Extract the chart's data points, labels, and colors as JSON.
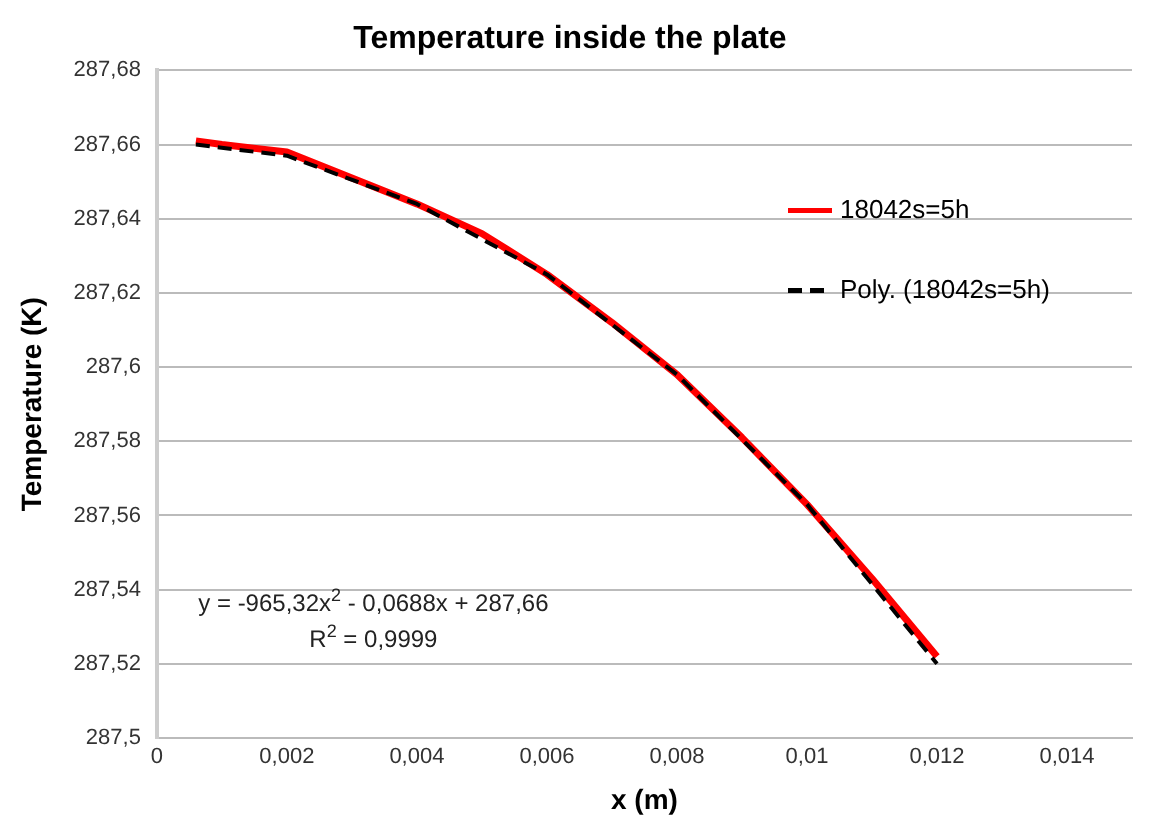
{
  "chart_data": {
    "type": "line",
    "title": "Temperature inside the plate",
    "xlabel": "x (m)",
    "ylabel": "Temperature (K)",
    "x": [
      0.0006,
      0.001,
      0.002,
      0.003,
      0.004,
      0.005,
      0.006,
      0.007,
      0.008,
      0.009,
      0.01,
      0.011,
      0.012
    ],
    "series": [
      {
        "name": "18042s=5h",
        "color": "#ff0000",
        "line_style": "solid",
        "values": [
          287.661,
          287.66,
          287.658,
          287.651,
          287.644,
          287.636,
          287.625,
          287.612,
          287.598,
          287.581,
          287.563,
          287.543,
          287.522
        ]
      },
      {
        "name": "Poly. (18042s=5h)",
        "color": "#000000",
        "line_style": "dashed",
        "x": [
          0.0006,
          0.002,
          0.004,
          0.006,
          0.008,
          0.01,
          0.012
        ],
        "values": [
          287.66,
          287.657,
          287.644,
          287.625,
          287.598,
          287.563,
          287.52
        ]
      }
    ],
    "xlim": [
      0,
      0.015
    ],
    "xticks": [
      {
        "value": 0,
        "label": "0"
      },
      {
        "value": 0.002,
        "label": "0,002"
      },
      {
        "value": 0.004,
        "label": "0,004"
      },
      {
        "value": 0.006,
        "label": "0,006"
      },
      {
        "value": 0.008,
        "label": "0,008"
      },
      {
        "value": 0.01,
        "label": "0,01"
      },
      {
        "value": 0.012,
        "label": "0,012"
      },
      {
        "value": 0.014,
        "label": "0,014"
      }
    ],
    "ylim": [
      287.5,
      287.68
    ],
    "yticks": [
      {
        "value": 287.5,
        "label": "287,5"
      },
      {
        "value": 287.52,
        "label": "287,52"
      },
      {
        "value": 287.54,
        "label": "287,54"
      },
      {
        "value": 287.56,
        "label": "287,56"
      },
      {
        "value": 287.58,
        "label": "287,58"
      },
      {
        "value": 287.6,
        "label": "287,6"
      },
      {
        "value": 287.62,
        "label": "287,62"
      },
      {
        "value": 287.64,
        "label": "287,64"
      },
      {
        "value": 287.66,
        "label": "287,66"
      },
      {
        "value": 287.68,
        "label": "287,68"
      }
    ],
    "grid": "y",
    "legend": "right",
    "marker": "none",
    "annotations": [
      "y = -965,32x$^{2}$ - 0,0688x + 287,66",
      "R$^{2}$ = 0,9999"
    ]
  }
}
